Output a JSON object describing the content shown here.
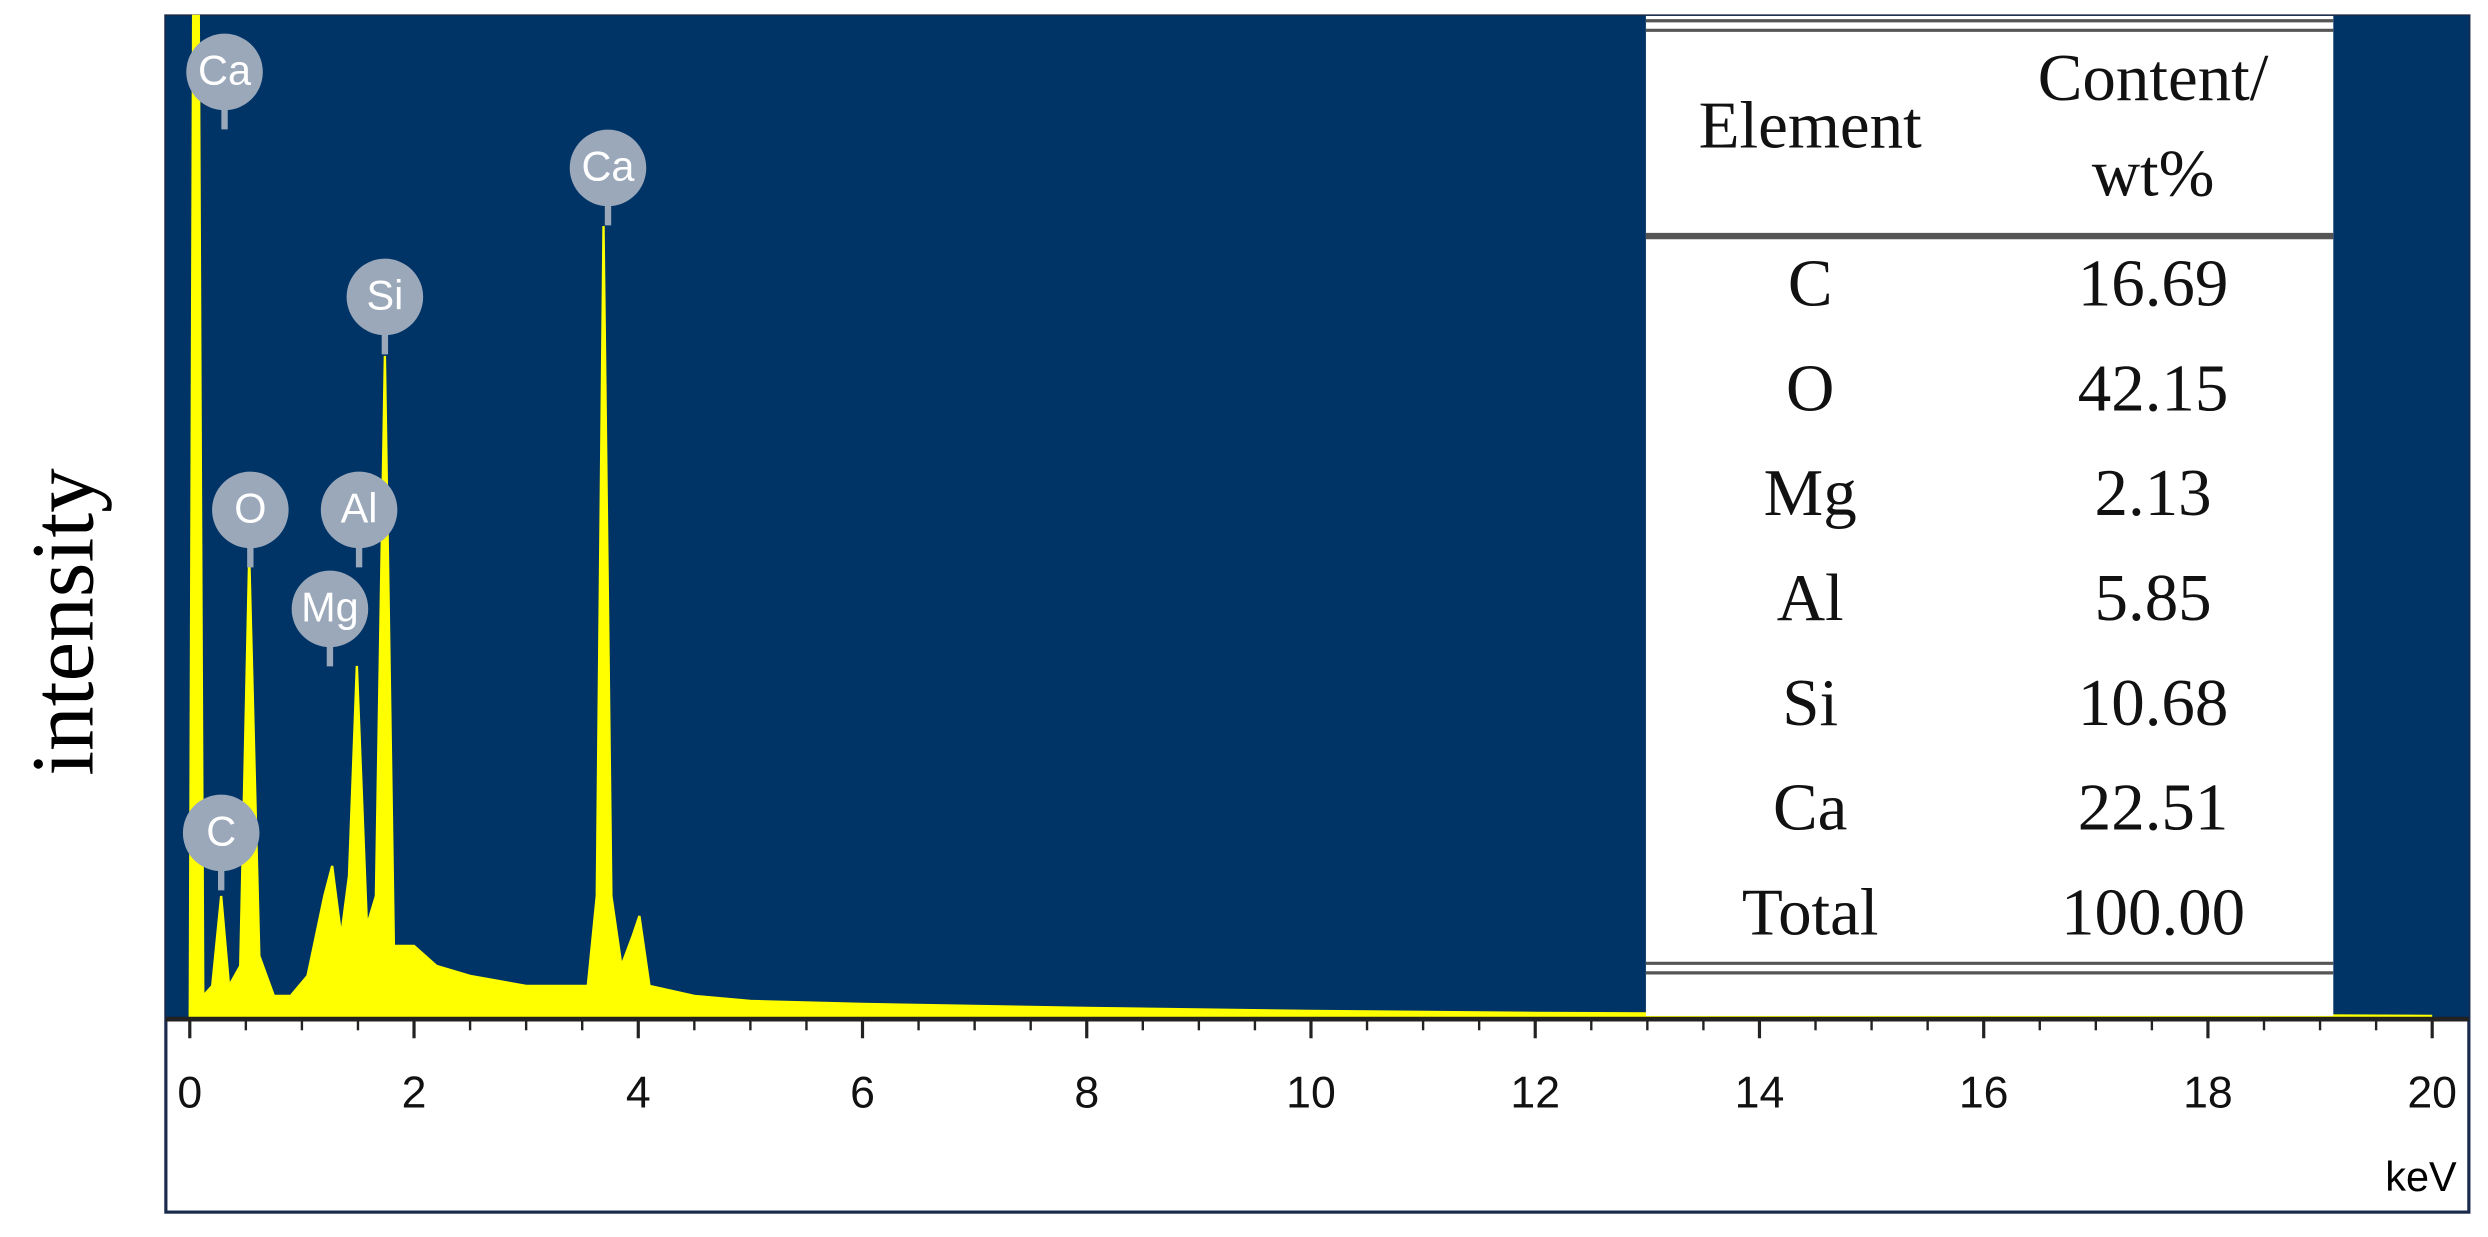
{
  "chart_data": {
    "type": "area",
    "x": [
      0,
      0.03,
      0.08,
      0.12,
      0.2,
      0.28,
      0.35,
      0.45,
      0.53,
      0.62,
      0.75,
      0.9,
      1.05,
      1.2,
      1.27,
      1.35,
      1.42,
      1.49,
      1.58,
      1.66,
      1.74,
      1.82,
      2.0,
      2.2,
      2.5,
      3.0,
      3.3,
      3.55,
      3.63,
      3.69,
      3.76,
      3.85,
      3.95,
      4.01,
      4.1,
      4.5,
      5,
      6,
      7,
      8,
      10,
      12,
      14,
      16,
      18,
      20
    ],
    "values": [
      0,
      100,
      100,
      2,
      3,
      12,
      3,
      5,
      46,
      6,
      2,
      2,
      4,
      12,
      15,
      8,
      14,
      35,
      9,
      12,
      66,
      7,
      7,
      5,
      4,
      3,
      3,
      3,
      12,
      79,
      12,
      5,
      8,
      10,
      3,
      2,
      1.5,
      1.2,
      1,
      0.8,
      0.5,
      0.3,
      0.2,
      0.1,
      0.1,
      0
    ],
    "color": "#ffff00",
    "background": "#003366",
    "xlim": [
      0,
      20
    ],
    "ylim": [
      0,
      100
    ],
    "xticks": [
      0,
      2,
      4,
      6,
      8,
      10,
      12,
      14,
      16,
      18,
      20
    ],
    "x_label": "keV",
    "y_label": "intensity",
    "annotations": [
      {
        "text": "Ca",
        "x": 0.31,
        "y": 94.4
      },
      {
        "text": "Ca",
        "x": 3.73,
        "y": 84.8
      },
      {
        "text": "Si",
        "x": 1.74,
        "y": 71.9
      },
      {
        "text": "O",
        "x": 0.54,
        "y": 50.6
      },
      {
        "text": "Al",
        "x": 1.51,
        "y": 50.6
      },
      {
        "text": "Mg",
        "x": 1.25,
        "y": 40.7
      },
      {
        "text": "C",
        "x": 0.28,
        "y": 18.3
      }
    ]
  },
  "table": {
    "header": [
      [
        "Element"
      ],
      [
        "Content/",
        "wt%"
      ]
    ],
    "rows": [
      [
        "C",
        "16.69"
      ],
      [
        "O",
        "42.15"
      ],
      [
        "Mg",
        "2.13"
      ],
      [
        "Al",
        "5.85"
      ],
      [
        "Si",
        "10.68"
      ],
      [
        "Ca",
        "22.51"
      ],
      [
        "Total",
        "100.00"
      ]
    ]
  }
}
